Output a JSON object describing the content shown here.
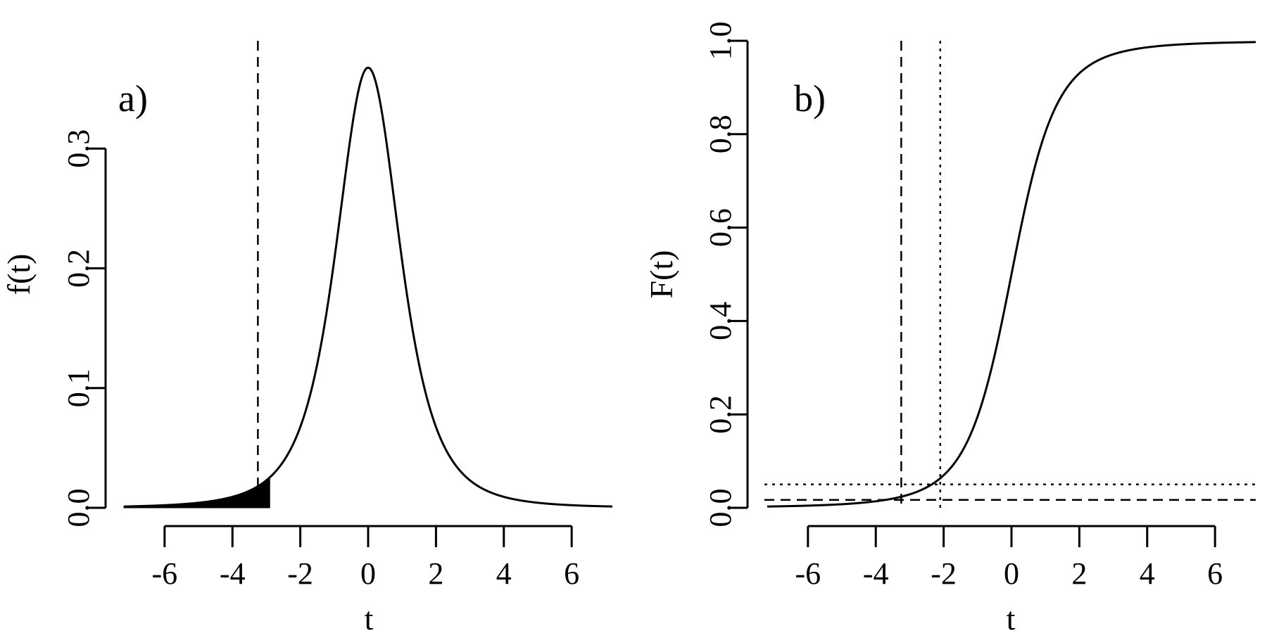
{
  "chart_data": [
    {
      "type": "line",
      "panel_label": "a)",
      "xlabel": "t",
      "ylabel": "f(t)",
      "xlim": [
        -7.2,
        7.2
      ],
      "ylim": [
        0,
        0.39
      ],
      "x_ticks": [
        -6,
        -4,
        -2,
        0,
        2,
        4,
        6
      ],
      "x_tick_labels": [
        "-6",
        "-4",
        "-2",
        "0",
        "2",
        "4",
        "6"
      ],
      "y_ticks": [
        0.0,
        0.1,
        0.2,
        0.3
      ],
      "y_tick_labels": [
        "0.0",
        "0.1",
        "0.2",
        "0.3"
      ],
      "grid": false,
      "series": [
        {
          "curve": "t-density",
          "degrees_of_freedom": 3,
          "x_range": [
            -7.2,
            7.2
          ],
          "line_style": "solid",
          "color": "#000000"
        }
      ],
      "shaded_region": {
        "x_from": -7.2,
        "x_to": -2.9,
        "color": "#000000"
      },
      "vertical_lines": [
        {
          "x": -3.25,
          "line_style": "dashed"
        }
      ],
      "horizontal_lines": []
    },
    {
      "type": "line",
      "panel_label": "b)",
      "xlabel": "t",
      "ylabel": "F(t)",
      "xlim": [
        -7.2,
        7.2
      ],
      "ylim": [
        0,
        1.0
      ],
      "x_ticks": [
        -6,
        -4,
        -2,
        0,
        2,
        4,
        6
      ],
      "x_tick_labels": [
        "-6",
        "-4",
        "-2",
        "0",
        "2",
        "4",
        "6"
      ],
      "y_ticks": [
        0.0,
        0.2,
        0.4,
        0.6,
        0.8,
        1.0
      ],
      "y_tick_labels": [
        "0.0",
        "0.2",
        "0.4",
        "0.6",
        "0.8",
        "1.0"
      ],
      "grid": false,
      "series": [
        {
          "curve": "t-cdf",
          "degrees_of_freedom": 3,
          "x_range": [
            -7.2,
            7.2
          ],
          "line_style": "solid",
          "color": "#000000"
        }
      ],
      "vertical_lines": [
        {
          "x": -3.25,
          "line_style": "dashed"
        },
        {
          "x": -2.1,
          "line_style": "dotted"
        }
      ],
      "horizontal_lines": [
        {
          "y": 0.05,
          "line_style": "dotted"
        },
        {
          "y": 0.017,
          "line_style": "dashed"
        }
      ]
    }
  ]
}
